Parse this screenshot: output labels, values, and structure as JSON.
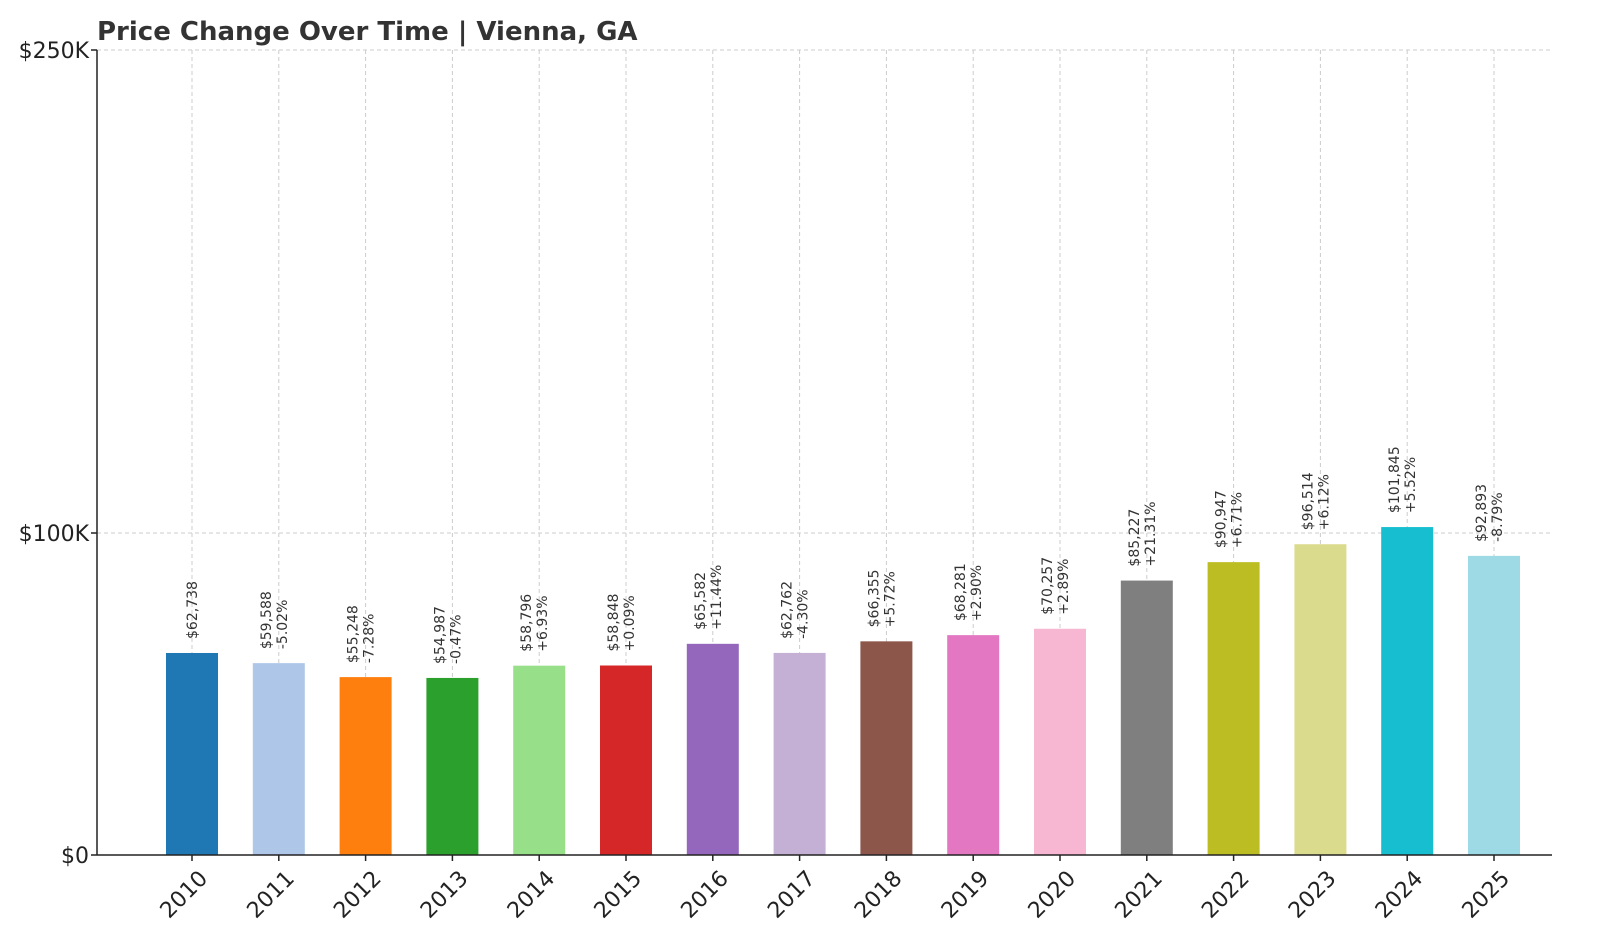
{
  "chart_data": {
    "type": "bar",
    "title": "Price Change Over Time | Vienna, GA",
    "xlabel": "",
    "ylabel": "",
    "ylim": [
      0,
      250000
    ],
    "yticks": [
      {
        "value": 0,
        "label": "$0"
      },
      {
        "value": 100000,
        "label": "$100K"
      },
      {
        "value": 250000,
        "label": "$250K"
      }
    ],
    "grid": true,
    "categories": [
      "2010",
      "2011",
      "2012",
      "2013",
      "2014",
      "2015",
      "2016",
      "2017",
      "2018",
      "2019",
      "2020",
      "2021",
      "2022",
      "2023",
      "2024",
      "2025"
    ],
    "values": [
      62738,
      59588,
      55248,
      54987,
      58796,
      58848,
      65582,
      62762,
      66355,
      68281,
      70257,
      85227,
      90947,
      96514,
      101845,
      92893
    ],
    "value_labels": [
      "$62,738",
      "$59,588",
      "$55,248",
      "$54,987",
      "$58,796",
      "$58,848",
      "$65,582",
      "$62,762",
      "$66,355",
      "$68,281",
      "$70,257",
      "$85,227",
      "$90,947",
      "$96,514",
      "$101,845",
      "$92,893"
    ],
    "change_labels": [
      "",
      "-5.02%",
      "-7.28%",
      "-0.47%",
      "+6.93%",
      "+0.09%",
      "+11.44%",
      "-4.30%",
      "+5.72%",
      "+2.90%",
      "+2.89%",
      "+21.31%",
      "+6.71%",
      "+6.12%",
      "+5.52%",
      "-8.79%"
    ],
    "colors": [
      "#1f77b4",
      "#aec7e8",
      "#ff7f0e",
      "#2ca02c",
      "#98df8a",
      "#d62728",
      "#9467bd",
      "#c5b0d5",
      "#8c564b",
      "#e377c2",
      "#f7b6d2",
      "#7f7f7f",
      "#bcbd22",
      "#dbdb8d",
      "#17becf",
      "#9edae5"
    ]
  }
}
